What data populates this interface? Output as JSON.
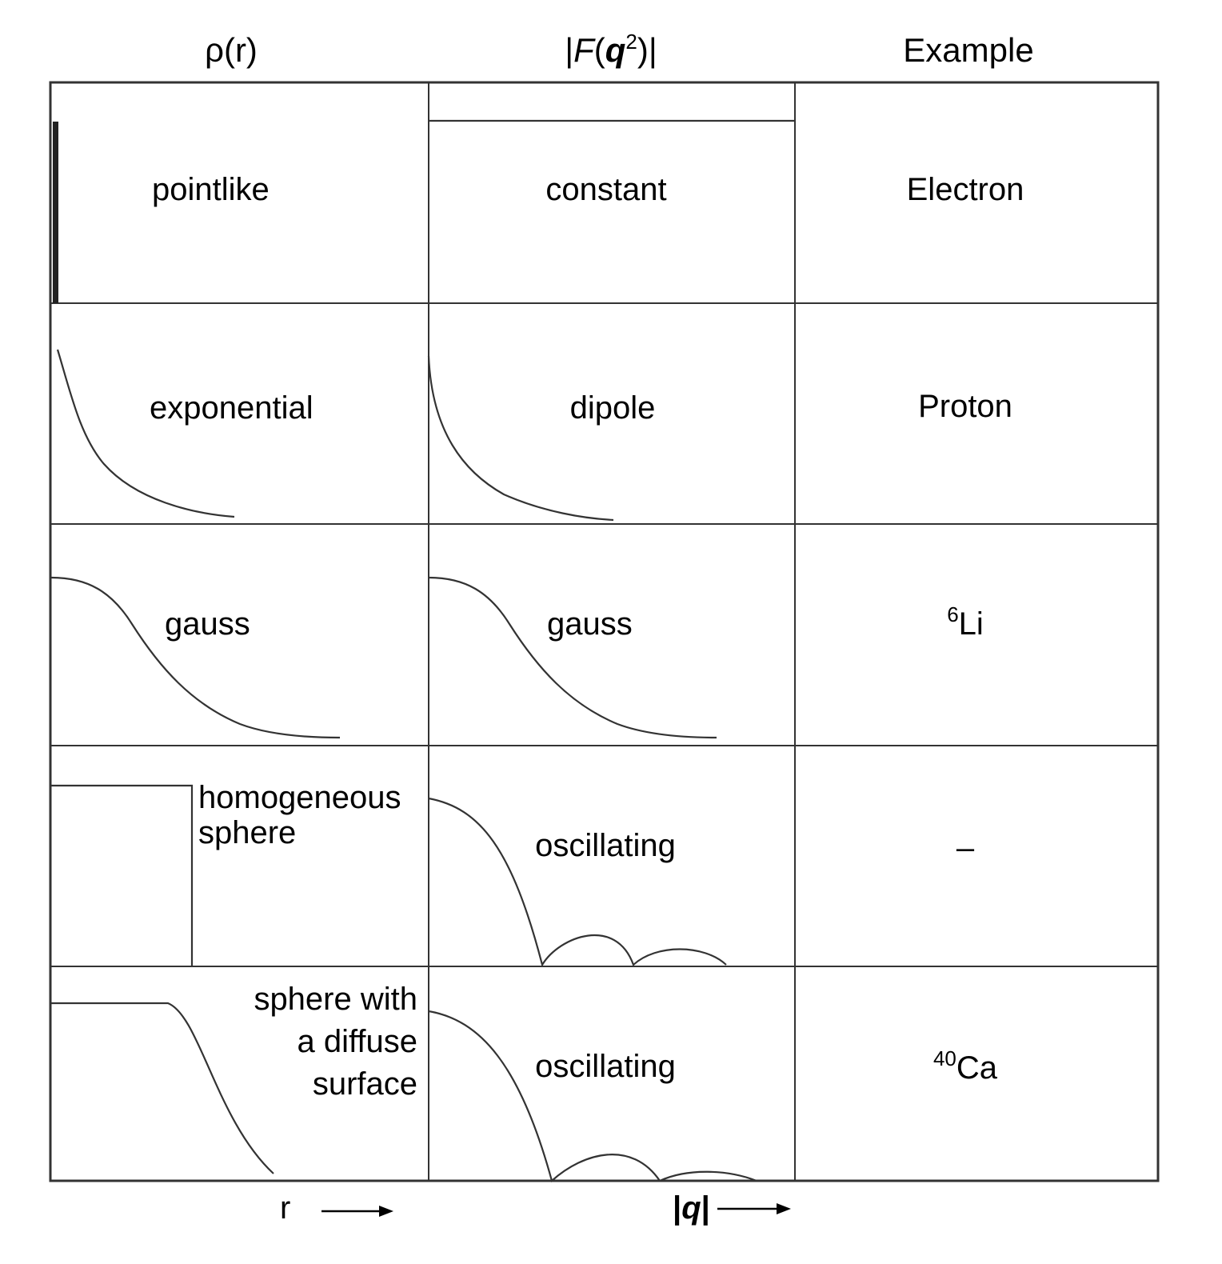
{
  "headers": {
    "density": "ρ(r)",
    "form_factor": {
      "pre": "|",
      "F": "F",
      "open": "(",
      "q": "q",
      "exp": "2",
      "close": ")|"
    },
    "example": "Example"
  },
  "rows": [
    {
      "density_label": "pointlike",
      "form_factor_label": "constant",
      "example": {
        "sup": "",
        "base": "Electron"
      }
    },
    {
      "density_label": "exponential",
      "form_factor_label": "dipole",
      "example": {
        "sup": "",
        "base": "Proton"
      }
    },
    {
      "density_label": "gauss",
      "form_factor_label": "gauss",
      "example": {
        "sup": "6",
        "base": "Li"
      }
    },
    {
      "density_label_lines": [
        "homogeneous",
        "sphere"
      ],
      "form_factor_label": "oscillating",
      "example": {
        "sup": "",
        "base": "–"
      }
    },
    {
      "density_label_lines": [
        "sphere with",
        "a diffuse",
        "surface"
      ],
      "form_factor_label": "oscillating",
      "example": {
        "sup": "40",
        "base": "Ca"
      }
    }
  ],
  "axes": {
    "r_label": "r",
    "q_label": {
      "pre": "|",
      "q": "q",
      "post": "|"
    }
  },
  "colors": {
    "line": "#333333",
    "text": "#000000",
    "background": "#ffffff"
  }
}
